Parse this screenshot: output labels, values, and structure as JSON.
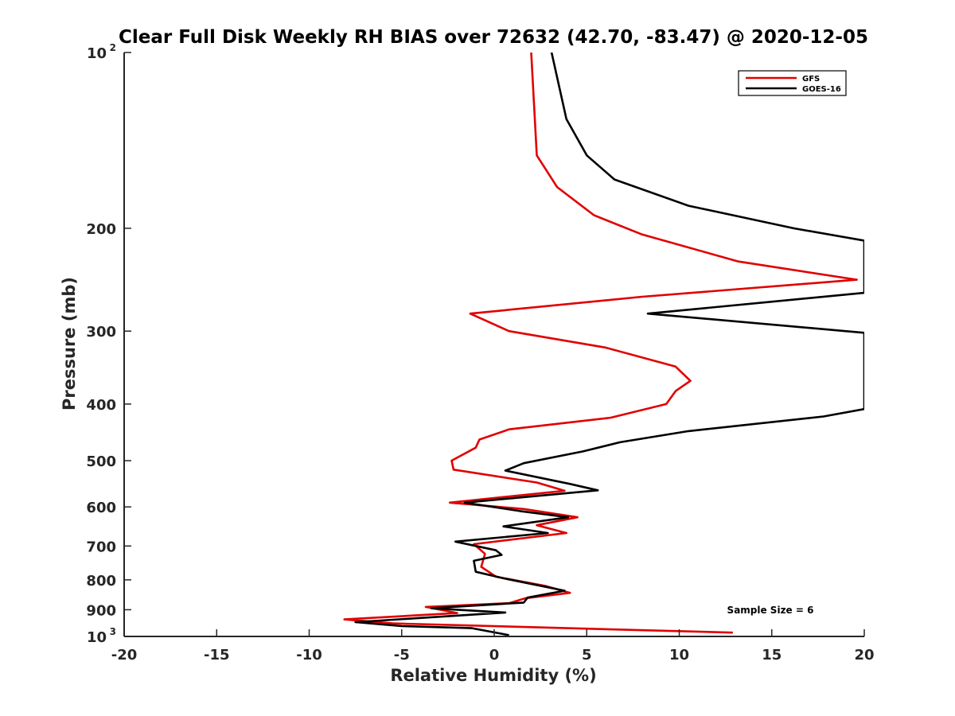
{
  "chart_data": {
    "type": "line",
    "title": "Clear Full Disk Weekly RH BIAS over 72632 (42.70, -83.47) @ 2020-12-05",
    "xlabel": "Relative Humidity (%)",
    "ylabel": "Pressure (mb)",
    "xlim": [
      -20,
      20
    ],
    "ylim": [
      100,
      1000
    ],
    "y_scale": "log",
    "y_reversed": true,
    "x_ticks": [
      "-20",
      "-15",
      "-10",
      "-5",
      "0",
      "5",
      "10",
      "15",
      "20"
    ],
    "y_ticks": [
      {
        "value": 100,
        "base": "10",
        "exp": "2"
      },
      {
        "value": 200,
        "label": "200"
      },
      {
        "value": 300,
        "label": "300"
      },
      {
        "value": 400,
        "label": "400"
      },
      {
        "value": 500,
        "label": "500"
      },
      {
        "value": 600,
        "label": "600"
      },
      {
        "value": 700,
        "label": "700"
      },
      {
        "value": 800,
        "label": "800"
      },
      {
        "value": 900,
        "label": "900"
      },
      {
        "value": 1000,
        "base": "10",
        "exp": "3"
      }
    ],
    "grid": false,
    "legend_position": "top-right",
    "annotation": "Sample Size = 6",
    "series": [
      {
        "name": "GFS",
        "color": "#e00000",
        "points": [
          [
            2.0,
            100
          ],
          [
            2.3,
            150
          ],
          [
            3.4,
            170
          ],
          [
            5.4,
            190
          ],
          [
            8.0,
            205
          ],
          [
            13.2,
            228
          ],
          [
            19.6,
            245
          ],
          [
            8.0,
            262
          ],
          [
            -1.3,
            280
          ],
          [
            0.8,
            300
          ],
          [
            6.0,
            320
          ],
          [
            9.8,
            345
          ],
          [
            10.6,
            365
          ],
          [
            9.8,
            380
          ],
          [
            9.3,
            400
          ],
          [
            6.3,
            422
          ],
          [
            0.8,
            442
          ],
          [
            -0.8,
            460
          ],
          [
            -1.0,
            475
          ],
          [
            -2.3,
            500
          ],
          [
            -2.2,
            518
          ],
          [
            2.3,
            545
          ],
          [
            3.8,
            563
          ],
          [
            -2.4,
            590
          ],
          [
            1.6,
            605
          ],
          [
            4.5,
            625
          ],
          [
            2.3,
            645
          ],
          [
            3.9,
            665
          ],
          [
            -1.1,
            695
          ],
          [
            -0.5,
            722
          ],
          [
            -0.7,
            760
          ],
          [
            0.1,
            790
          ],
          [
            2.8,
            820
          ],
          [
            4.1,
            842
          ],
          [
            1.7,
            860
          ],
          [
            0.8,
            877
          ],
          [
            -3.7,
            890
          ],
          [
            -2.0,
            912
          ],
          [
            -8.1,
            935
          ],
          [
            -5.5,
            950
          ],
          [
            12.9,
            985
          ]
        ]
      },
      {
        "name": "GOES-16",
        "color": "#000000",
        "points": [
          [
            3.1,
            100
          ],
          [
            3.9,
            130
          ],
          [
            5.0,
            150
          ],
          [
            6.5,
            165
          ],
          [
            10.5,
            183
          ],
          [
            16.2,
            200
          ],
          [
            20.0,
            210
          ],
          [
            20.0,
            258
          ],
          [
            8.3,
            280
          ],
          [
            20.0,
            302
          ],
          [
            20.0,
            408
          ],
          [
            17.8,
            420
          ],
          [
            10.5,
            445
          ],
          [
            6.8,
            465
          ],
          [
            4.8,
            482
          ],
          [
            1.6,
            505
          ],
          [
            0.6,
            520
          ],
          [
            4.1,
            548
          ],
          [
            5.6,
            562
          ],
          [
            -1.6,
            590
          ],
          [
            1.4,
            610
          ],
          [
            4.0,
            625
          ],
          [
            0.5,
            648
          ],
          [
            2.9,
            665
          ],
          [
            -2.1,
            688
          ],
          [
            0.1,
            712
          ],
          [
            0.4,
            725
          ],
          [
            -1.1,
            742
          ],
          [
            -1.0,
            775
          ],
          [
            0.5,
            795
          ],
          [
            3.8,
            835
          ],
          [
            1.8,
            858
          ],
          [
            1.6,
            875
          ],
          [
            -3.4,
            895
          ],
          [
            0.6,
            910
          ],
          [
            -7.5,
            945
          ],
          [
            -5.0,
            960
          ],
          [
            -1.2,
            968
          ],
          [
            0.8,
            995
          ]
        ]
      }
    ]
  }
}
